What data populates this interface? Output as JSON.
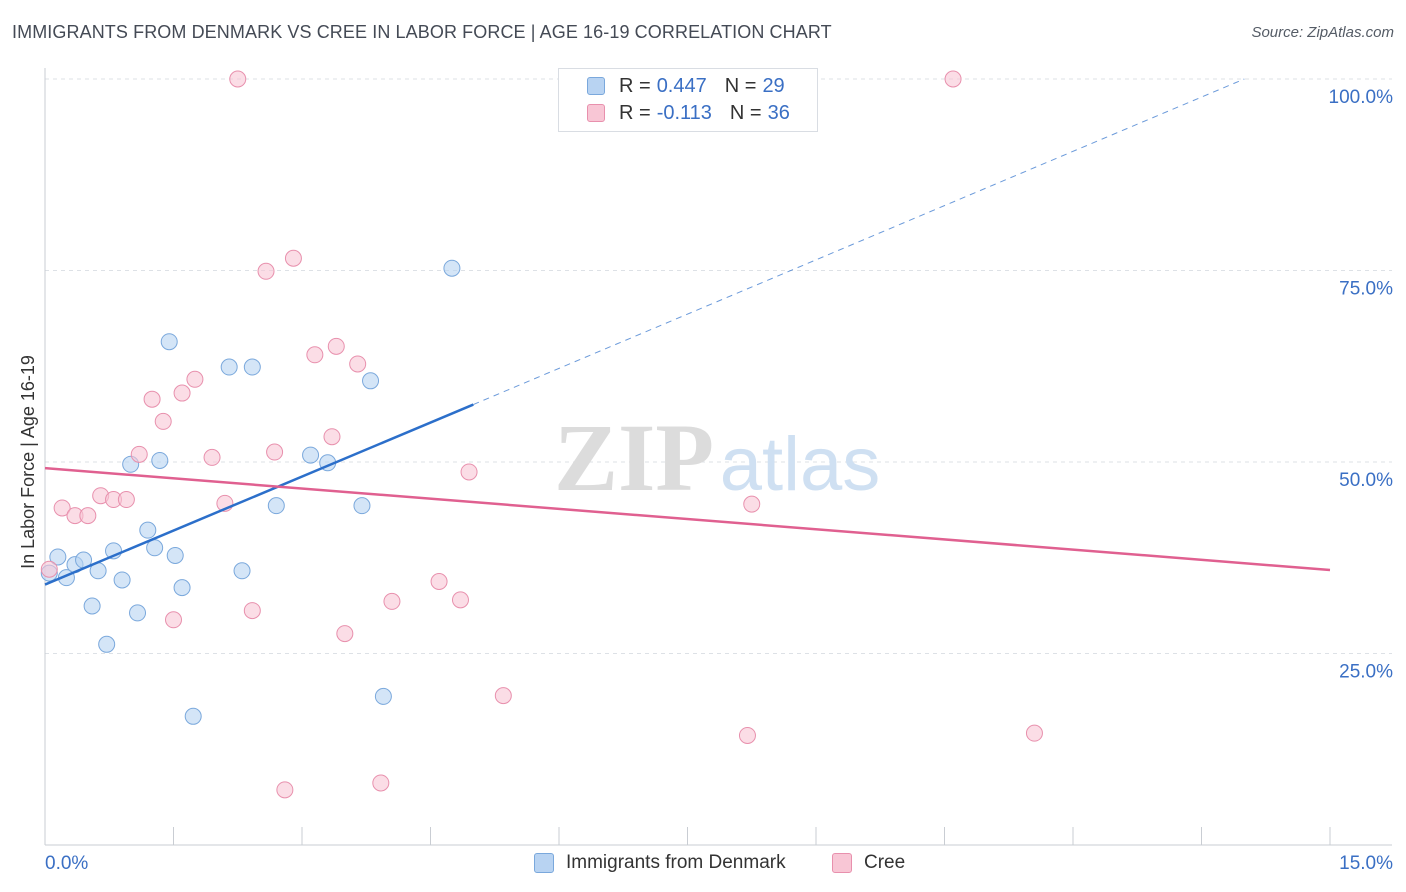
{
  "title": "IMMIGRANTS FROM DENMARK VS CREE IN LABOR FORCE | AGE 16-19 CORRELATION CHART",
  "source": "Source: ZipAtlas.com",
  "watermark": {
    "zip": "ZIP",
    "atlas": "atlas"
  },
  "legend": {
    "r_label": "R =",
    "n_label": "N =",
    "series": [
      {
        "name": "Immigrants from Denmark",
        "r": "0.447",
        "n": "29"
      },
      {
        "name": "Cree",
        "r": "-0.113",
        "n": "36"
      }
    ]
  },
  "colors": {
    "denmark_fill": "#b8d3f2",
    "denmark_stroke": "#7aa8dc",
    "denmark_line": "#2c6fca",
    "cree_fill": "#f8c6d5",
    "cree_stroke": "#e890ad",
    "cree_line": "#e06090",
    "axis_label": "#3a6fc4",
    "grid": "#dde1e6"
  },
  "chart_data": {
    "type": "scatter",
    "title": "IMMIGRANTS FROM DENMARK VS CREE IN LABOR FORCE | AGE 16-19 CORRELATION CHART",
    "xlabel": "",
    "ylabel": "In Labor Force | Age 16-19",
    "xlim": [
      0,
      15
    ],
    "ylim": [
      0,
      100
    ],
    "x_tick_labels": [
      "0.0%",
      "15.0%"
    ],
    "y_ticks": [
      25,
      50,
      75,
      100
    ],
    "y_tick_labels": [
      "25.0%",
      "50.0%",
      "75.0%",
      "100.0%"
    ],
    "grid": "horizontal dashed",
    "legend_position": "top-center",
    "series": [
      {
        "name": "Immigrants from Denmark",
        "points": [
          [
            0.05,
            35.5
          ],
          [
            0.15,
            37.6
          ],
          [
            0.25,
            34.9
          ],
          [
            0.35,
            36.6
          ],
          [
            0.45,
            37.2
          ],
          [
            0.55,
            31.2
          ],
          [
            0.62,
            35.8
          ],
          [
            0.72,
            26.2
          ],
          [
            0.8,
            38.4
          ],
          [
            0.9,
            34.6
          ],
          [
            1.0,
            49.7
          ],
          [
            1.08,
            30.3
          ],
          [
            1.2,
            41.1
          ],
          [
            1.28,
            38.8
          ],
          [
            1.34,
            50.2
          ],
          [
            1.45,
            65.7
          ],
          [
            1.52,
            37.8
          ],
          [
            1.6,
            33.6
          ],
          [
            1.73,
            16.8
          ],
          [
            2.15,
            62.4
          ],
          [
            2.3,
            35.8
          ],
          [
            2.42,
            62.4
          ],
          [
            2.7,
            44.3
          ],
          [
            3.1,
            50.9
          ],
          [
            3.3,
            49.9
          ],
          [
            3.7,
            44.3
          ],
          [
            3.8,
            60.6
          ],
          [
            3.95,
            19.4
          ],
          [
            4.75,
            75.3
          ]
        ],
        "trend": {
          "x0": 0.0,
          "y0": 34.0,
          "x_solid_end": 5.0,
          "y_solid_end": 57.5,
          "x1": 14.0,
          "y1": 100.0,
          "dashed_after_solid": true
        }
      },
      {
        "name": "Cree",
        "points": [
          [
            0.05,
            36.0
          ],
          [
            0.2,
            44.0
          ],
          [
            0.35,
            43.0
          ],
          [
            0.5,
            43.0
          ],
          [
            0.65,
            45.6
          ],
          [
            0.8,
            45.1
          ],
          [
            0.95,
            45.1
          ],
          [
            1.1,
            51.0
          ],
          [
            1.25,
            58.2
          ],
          [
            1.38,
            55.3
          ],
          [
            1.5,
            29.4
          ],
          [
            1.6,
            59.0
          ],
          [
            1.75,
            60.8
          ],
          [
            1.95,
            50.6
          ],
          [
            2.1,
            44.6
          ],
          [
            2.25,
            100.0
          ],
          [
            2.42,
            30.6
          ],
          [
            2.58,
            74.9
          ],
          [
            2.68,
            51.3
          ],
          [
            2.8,
            7.2
          ],
          [
            2.9,
            76.6
          ],
          [
            3.15,
            64.0
          ],
          [
            3.35,
            53.3
          ],
          [
            3.4,
            65.1
          ],
          [
            3.5,
            27.6
          ],
          [
            3.65,
            62.8
          ],
          [
            3.92,
            8.1
          ],
          [
            4.05,
            31.8
          ],
          [
            4.6,
            34.4
          ],
          [
            4.85,
            32.0
          ],
          [
            4.95,
            48.7
          ],
          [
            5.35,
            19.5
          ],
          [
            8.2,
            14.3
          ],
          [
            8.25,
            44.5
          ],
          [
            10.6,
            100.0
          ],
          [
            11.55,
            14.6
          ]
        ],
        "trend": {
          "x0": 0.0,
          "y0": 49.2,
          "x1": 15.0,
          "y1": 35.9
        }
      }
    ]
  }
}
